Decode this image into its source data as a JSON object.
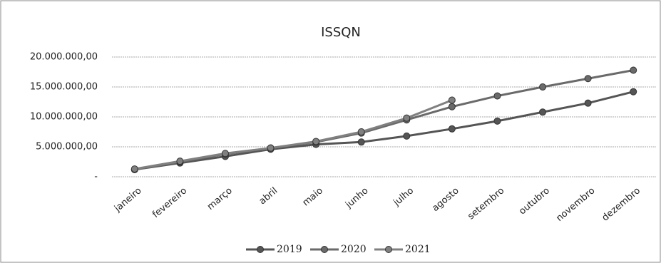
{
  "chart_data": {
    "type": "line",
    "title": "ISSQN",
    "categories": [
      "janeiro",
      "fevereiro",
      "março",
      "abril",
      "maio",
      "junho",
      "julho",
      "agosto",
      "setembro",
      "outubro",
      "novembro",
      "dezembro"
    ],
    "series": [
      {
        "name": "2019",
        "color": "#555555",
        "values": [
          1200000,
          2300000,
          3400000,
          4600000,
          5400000,
          5800000,
          6800000,
          8000000,
          9300000,
          10800000,
          12300000,
          14200000
        ]
      },
      {
        "name": "2020",
        "color": "#6a6a6a",
        "values": [
          1200000,
          2500000,
          3800000,
          4800000,
          5800000,
          7300000,
          9500000,
          11700000,
          13500000,
          15000000,
          16400000,
          17800000
        ]
      },
      {
        "name": "2021",
        "color": "#808080",
        "values": [
          1300000,
          2600000,
          3900000,
          4800000,
          5900000,
          7500000,
          9800000,
          12800000,
          null,
          null,
          null,
          null
        ]
      }
    ],
    "ylim": [
      0,
      20000000
    ],
    "yticks": [
      {
        "value": 0,
        "label": "-"
      },
      {
        "value": 5000000,
        "label": "5.000.000,00"
      },
      {
        "value": 10000000,
        "label": "10.000.000,00"
      },
      {
        "value": 15000000,
        "label": "15.000.000,00"
      },
      {
        "value": 20000000,
        "label": "20.000.000,00"
      }
    ],
    "grid": true,
    "legend": "bottom"
  }
}
